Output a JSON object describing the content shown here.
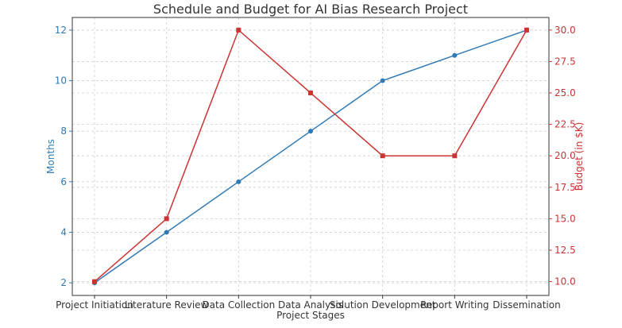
{
  "chart_data": {
    "type": "line",
    "title": "Schedule and Budget for AI Bias Research Project",
    "xlabel": "Project Stages",
    "ylabel_left": "Months",
    "ylabel_right": "Budget (in $K)",
    "categories": [
      "Project Initiation",
      "Literature Review",
      "Data Collection",
      "Data Analysis",
      "Solution Development",
      "Report Writing",
      "Dissemination"
    ],
    "series": [
      {
        "axis": "left",
        "color": "#2f7ab5",
        "marker": "circle",
        "values": [
          2,
          4,
          6,
          8,
          10,
          11,
          12
        ]
      },
      {
        "axis": "right",
        "color": "#cc3333",
        "marker": "square",
        "values": [
          10,
          15,
          30,
          25,
          20,
          20,
          30
        ]
      }
    ],
    "ylim_left": [
      1.5,
      12.5
    ],
    "ylim_right": [
      8.9,
      31.0
    ],
    "yticks_left": [
      2,
      4,
      6,
      8,
      10,
      12
    ],
    "yticks_right": [
      10.0,
      12.5,
      15.0,
      17.5,
      20.0,
      22.5,
      25.0,
      27.5,
      30.0
    ],
    "yticks_right_labels": [
      "10.0",
      "12.5",
      "15.0",
      "17.5",
      "20.0",
      "22.5",
      "25.0",
      "27.5",
      "30.0"
    ],
    "grid": true
  }
}
